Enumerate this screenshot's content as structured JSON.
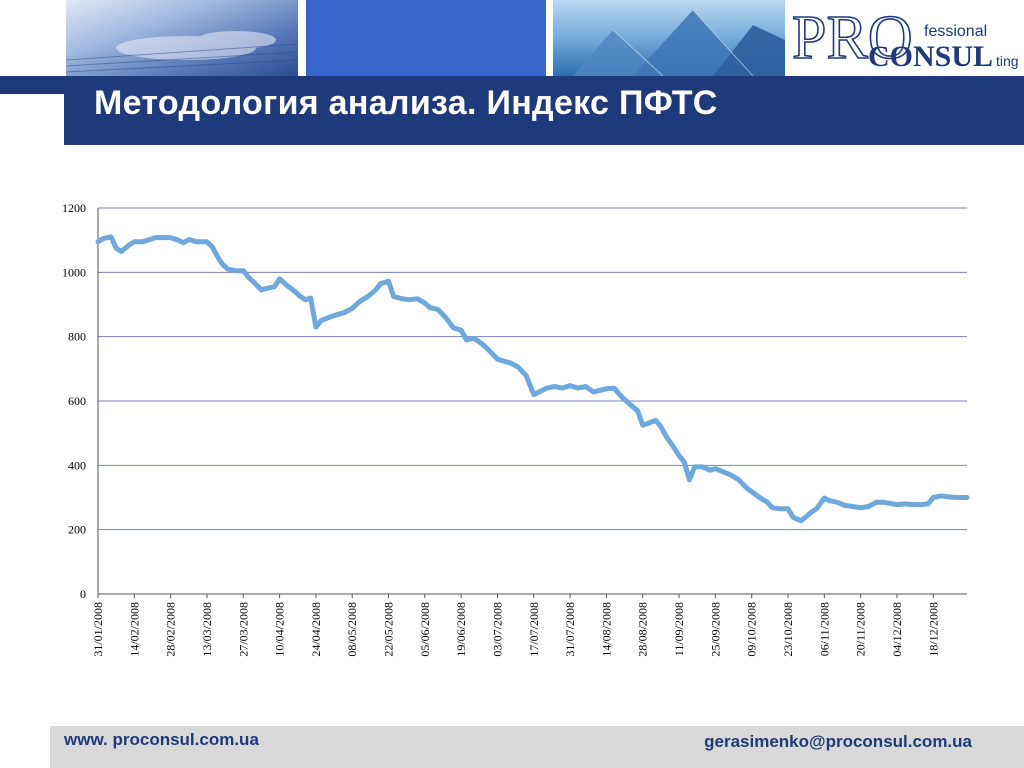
{
  "header": {
    "title": "Методология анализа. Индекс ПФТС",
    "logo": {
      "pro": "PRO",
      "fessional": "fessional",
      "consul": "CONSUL",
      "ting": "ting"
    }
  },
  "footer": {
    "website": "www. proconsul.com.ua",
    "email": "gerasimenko@proconsul.com.ua"
  },
  "colors": {
    "line": "#6fa8dc",
    "header_band": "#1f3a7a",
    "grid": "#7f7fb8"
  },
  "chart_data": {
    "type": "line",
    "title": "",
    "xlabel": "",
    "ylabel": "",
    "ylim": [
      0,
      1200
    ],
    "yticks": [
      0,
      200,
      400,
      600,
      800,
      1000,
      1200
    ],
    "grid": true,
    "x_start": "31/01/2008",
    "x_end": "31/12/2008",
    "xtick_labels": [
      "31/01/2008",
      "14/02/2008",
      "28/02/2008",
      "13/03/2008",
      "27/03/2008",
      "10/04/2008",
      "24/04/2008",
      "08/05/2008",
      "22/05/2008",
      "05/06/2008",
      "19/06/2008",
      "03/07/2008",
      "17/07/2008",
      "31/07/2008",
      "14/08/2008",
      "28/08/2008",
      "11/09/2008",
      "25/09/2008",
      "09/10/2008",
      "23/10/2008",
      "06/11/2008",
      "20/11/2008",
      "04/12/2008",
      "18/12/2008"
    ],
    "series": [
      {
        "name": "",
        "points": [
          [
            "31/01/2008",
            1095
          ],
          [
            "02/02/2008",
            1105
          ],
          [
            "05/02/2008",
            1110
          ],
          [
            "07/02/2008",
            1075
          ],
          [
            "09/02/2008",
            1065
          ],
          [
            "12/02/2008",
            1085
          ],
          [
            "14/02/2008",
            1095
          ],
          [
            "17/02/2008",
            1095
          ],
          [
            "20/02/2008",
            1102
          ],
          [
            "22/02/2008",
            1108
          ],
          [
            "25/02/2008",
            1108
          ],
          [
            "28/02/2008",
            1108
          ],
          [
            "02/03/2008",
            1100
          ],
          [
            "04/03/2008",
            1092
          ],
          [
            "06/03/2008",
            1102
          ],
          [
            "09/03/2008",
            1095
          ],
          [
            "11/03/2008",
            1095
          ],
          [
            "13/03/2008",
            1095
          ],
          [
            "15/03/2008",
            1080
          ],
          [
            "17/03/2008",
            1050
          ],
          [
            "19/03/2008",
            1025
          ],
          [
            "21/03/2008",
            1010
          ],
          [
            "24/03/2008",
            1005
          ],
          [
            "27/03/2008",
            1005
          ],
          [
            "29/03/2008",
            985
          ],
          [
            "31/03/2008",
            970
          ],
          [
            "03/04/2008",
            945
          ],
          [
            "05/04/2008",
            950
          ],
          [
            "08/04/2008",
            955
          ],
          [
            "10/04/2008",
            980
          ],
          [
            "13/04/2008",
            958
          ],
          [
            "16/04/2008",
            940
          ],
          [
            "18/04/2008",
            925
          ],
          [
            "20/04/2008",
            915
          ],
          [
            "22/04/2008",
            920
          ],
          [
            "24/04/2008",
            830
          ],
          [
            "26/04/2008",
            850
          ],
          [
            "29/04/2008",
            860
          ],
          [
            "02/05/2008",
            868
          ],
          [
            "05/05/2008",
            875
          ],
          [
            "08/05/2008",
            888
          ],
          [
            "11/05/2008",
            910
          ],
          [
            "14/05/2008",
            925
          ],
          [
            "17/05/2008",
            945
          ],
          [
            "19/05/2008",
            965
          ],
          [
            "22/05/2008",
            972
          ],
          [
            "24/05/2008",
            925
          ],
          [
            "27/05/2008",
            918
          ],
          [
            "30/05/2008",
            915
          ],
          [
            "02/06/2008",
            918
          ],
          [
            "05/06/2008",
            905
          ],
          [
            "07/06/2008",
            890
          ],
          [
            "10/06/2008",
            885
          ],
          [
            "13/06/2008",
            860
          ],
          [
            "16/06/2008",
            828
          ],
          [
            "19/06/2008",
            820
          ],
          [
            "21/06/2008",
            790
          ],
          [
            "24/06/2008",
            795
          ],
          [
            "27/06/2008",
            778
          ],
          [
            "30/06/2008",
            755
          ],
          [
            "03/07/2008",
            730
          ],
          [
            "05/07/2008",
            725
          ],
          [
            "08/07/2008",
            718
          ],
          [
            "11/07/2008",
            705
          ],
          [
            "14/07/2008",
            680
          ],
          [
            "17/07/2008",
            620
          ],
          [
            "19/07/2008",
            628
          ],
          [
            "22/07/2008",
            640
          ],
          [
            "25/07/2008",
            645
          ],
          [
            "28/07/2008",
            640
          ],
          [
            "31/07/2008",
            648
          ],
          [
            "03/08/2008",
            640
          ],
          [
            "06/08/2008",
            645
          ],
          [
            "09/08/2008",
            628
          ],
          [
            "11/08/2008",
            632
          ],
          [
            "14/08/2008",
            638
          ],
          [
            "17/08/2008",
            640
          ],
          [
            "20/08/2008",
            612
          ],
          [
            "23/08/2008",
            590
          ],
          [
            "26/08/2008",
            570
          ],
          [
            "28/08/2008",
            525
          ],
          [
            "30/08/2008",
            530
          ],
          [
            "02/09/2008",
            540
          ],
          [
            "04/09/2008",
            520
          ],
          [
            "06/09/2008",
            490
          ],
          [
            "09/09/2008",
            455
          ],
          [
            "11/09/2008",
            430
          ],
          [
            "13/09/2008",
            410
          ],
          [
            "15/09/2008",
            355
          ],
          [
            "17/09/2008",
            395
          ],
          [
            "20/09/2008",
            395
          ],
          [
            "23/09/2008",
            385
          ],
          [
            "25/09/2008",
            390
          ],
          [
            "28/09/2008",
            380
          ],
          [
            "01/10/2008",
            370
          ],
          [
            "04/10/2008",
            355
          ],
          [
            "07/10/2008",
            330
          ],
          [
            "09/10/2008",
            318
          ],
          [
            "12/10/2008",
            300
          ],
          [
            "15/10/2008",
            285
          ],
          [
            "17/10/2008",
            268
          ],
          [
            "20/10/2008",
            265
          ],
          [
            "23/10/2008",
            265
          ],
          [
            "25/10/2008",
            238
          ],
          [
            "28/10/2008",
            228
          ],
          [
            "30/10/2008",
            240
          ],
          [
            "01/11/2008",
            255
          ],
          [
            "03/11/2008",
            265
          ],
          [
            "06/11/2008",
            298
          ],
          [
            "08/11/2008",
            290
          ],
          [
            "11/11/2008",
            285
          ],
          [
            "14/11/2008",
            275
          ],
          [
            "17/11/2008",
            272
          ],
          [
            "20/11/2008",
            268
          ],
          [
            "23/11/2008",
            272
          ],
          [
            "26/11/2008",
            285
          ],
          [
            "29/11/2008",
            285
          ],
          [
            "01/12/2008",
            282
          ],
          [
            "04/12/2008",
            278
          ],
          [
            "07/12/2008",
            280
          ],
          [
            "10/12/2008",
            278
          ],
          [
            "13/12/2008",
            278
          ],
          [
            "16/12/2008",
            280
          ],
          [
            "18/12/2008",
            300
          ],
          [
            "21/12/2008",
            305
          ],
          [
            "24/12/2008",
            302
          ],
          [
            "27/12/2008",
            300
          ],
          [
            "31/12/2008",
            300
          ]
        ]
      }
    ]
  }
}
